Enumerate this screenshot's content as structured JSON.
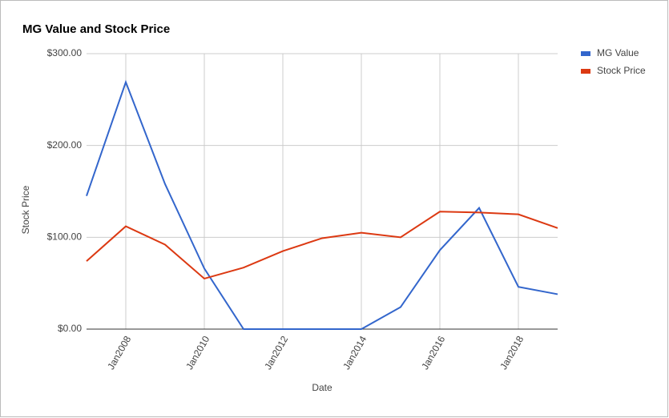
{
  "chart_data": {
    "type": "line",
    "title": "MG Value and Stock Price",
    "x_label": "Date",
    "y_label": "Stock Price",
    "x": [
      2007,
      2008,
      2009,
      2010,
      2011,
      2012,
      2013,
      2014,
      2015,
      2016,
      2017,
      2018,
      2019
    ],
    "series": [
      {
        "name": "MG Value",
        "color": "#3366cc",
        "values": [
          145,
          269,
          158,
          66,
          0,
          0,
          0,
          0,
          24,
          86,
          132,
          46,
          38
        ]
      },
      {
        "name": "Stock Price",
        "color": "#dc3912",
        "values": [
          74,
          112,
          92,
          55,
          67,
          85,
          99,
          105,
          100,
          128,
          127,
          125,
          110
        ]
      }
    ],
    "xlim": [
      2007,
      2019
    ],
    "xticks": [
      {
        "value": 2008,
        "label": "Jan2008"
      },
      {
        "value": 2010,
        "label": "Jan2010"
      },
      {
        "value": 2012,
        "label": "Jan2012"
      },
      {
        "value": 2014,
        "label": "Jan2014"
      },
      {
        "value": 2016,
        "label": "Jan2016"
      },
      {
        "value": 2018,
        "label": "Jan2018"
      }
    ],
    "ylim": [
      0,
      300
    ],
    "yticks": [
      {
        "value": 0,
        "label": "$0.00"
      },
      {
        "value": 100,
        "label": "$100.00"
      },
      {
        "value": 200,
        "label": "$200.00"
      },
      {
        "value": 300,
        "label": "$300.00"
      }
    ],
    "grid": true,
    "legend": "right"
  }
}
